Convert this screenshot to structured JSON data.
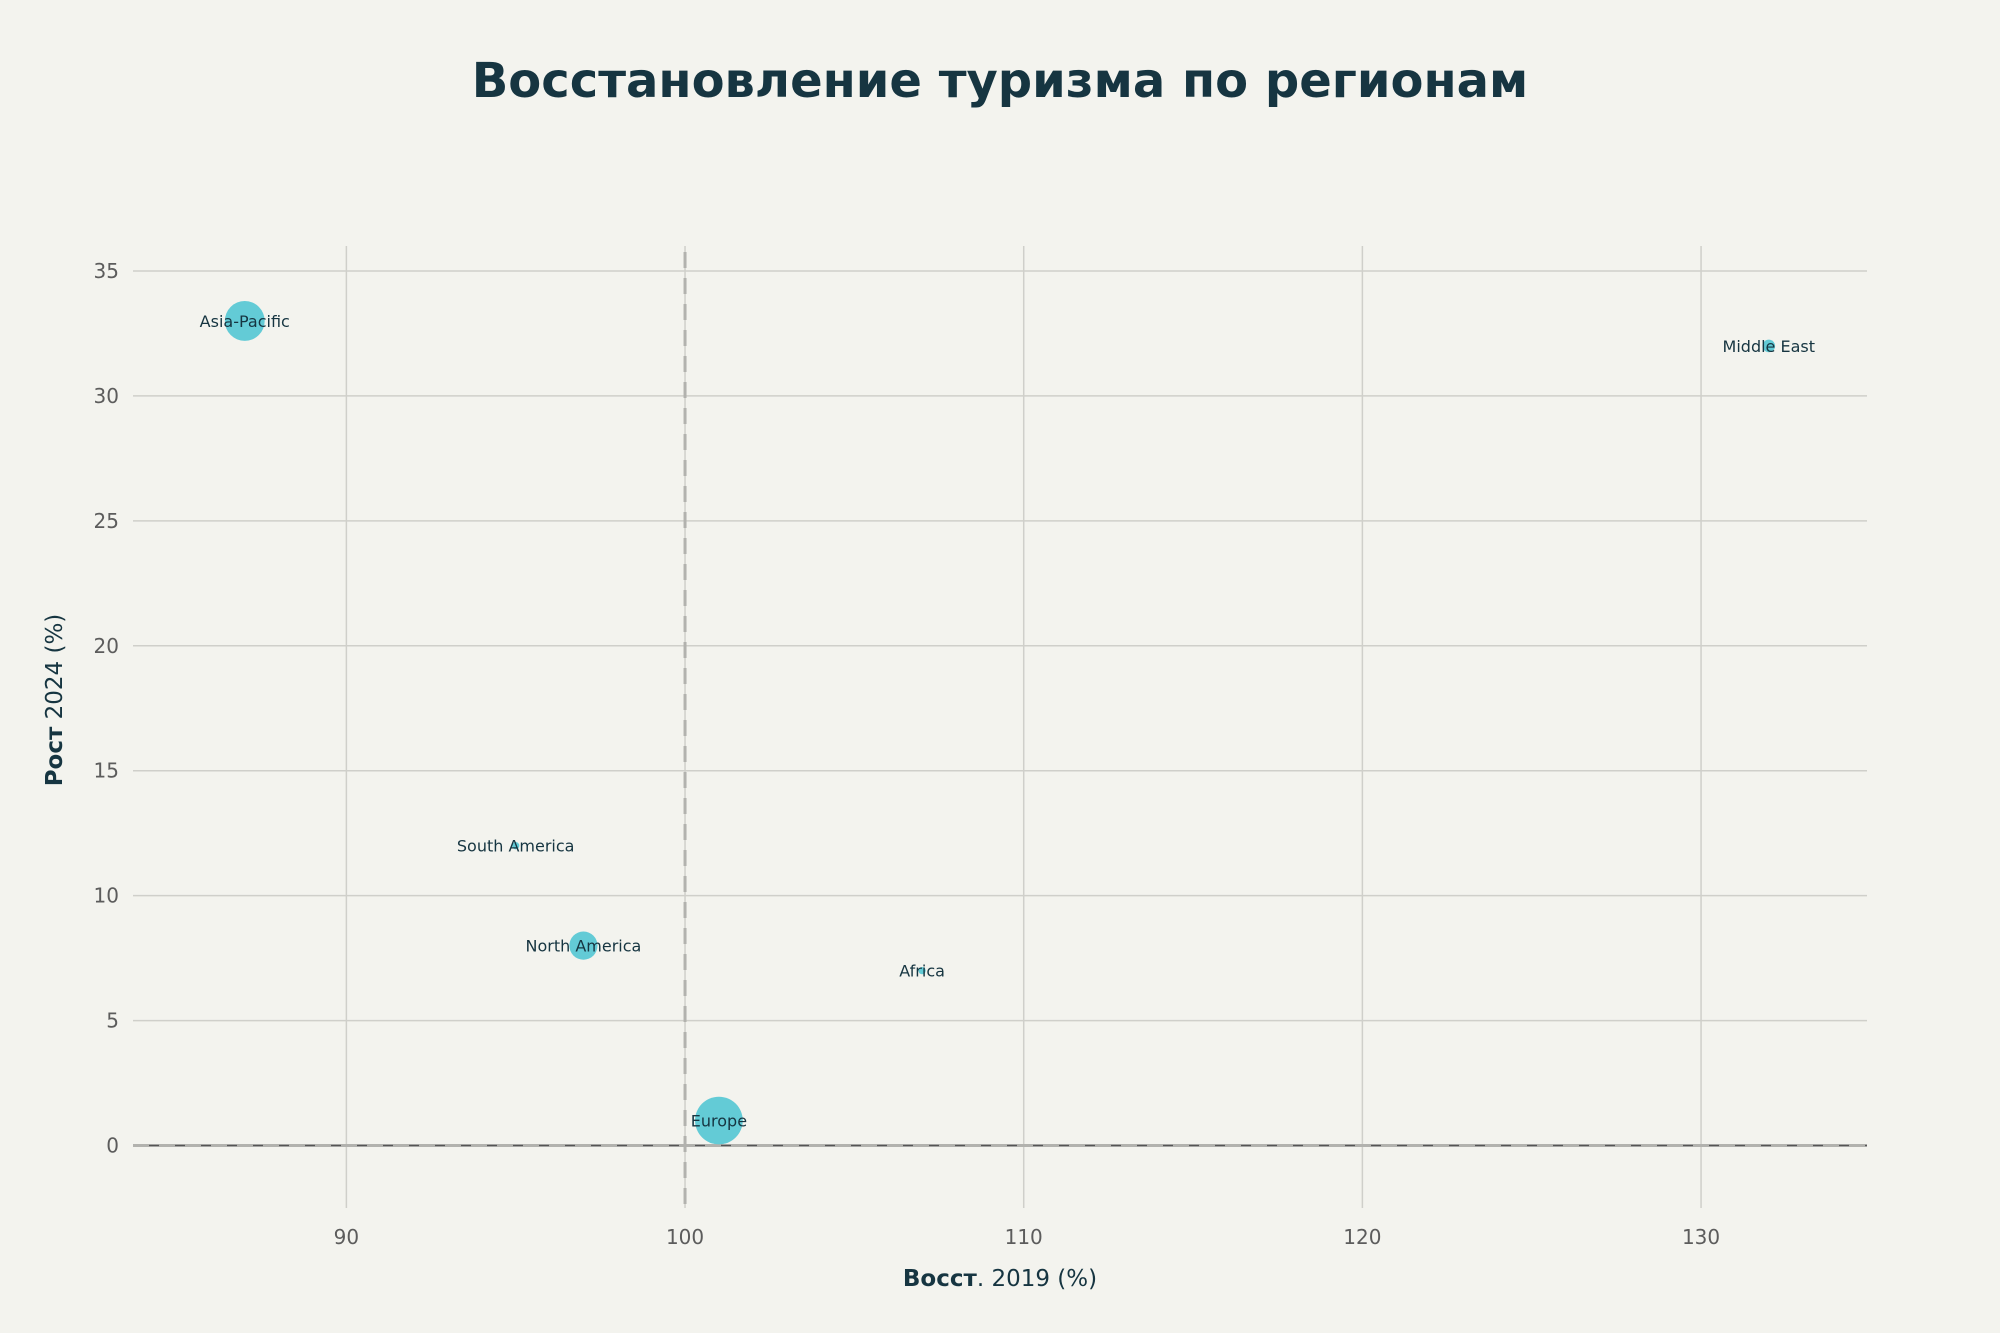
{
  "chart_data": {
    "type": "scatter",
    "title": "Восстановление туризма по регионам",
    "xlabel_bold": "Восст",
    "xlabel_rest": ". 2019 (%)",
    "ylabel_bold": "Рост",
    "ylabel_rest": " 2024 (%)",
    "xlim": [
      83.7,
      134.9
    ],
    "ylim": [
      -2.5,
      36
    ],
    "x_ticks": [
      90,
      100,
      110,
      120,
      130
    ],
    "y_ticks": [
      0,
      5,
      10,
      15,
      20,
      25,
      30,
      35
    ],
    "reference_lines": {
      "x": 100,
      "y": 0
    },
    "grid": true,
    "marker_color": "#5bc8d4",
    "points": [
      {
        "label": "Asia-Pacific",
        "x": 87,
        "y": 33,
        "size": 3
      },
      {
        "label": "Middle East",
        "x": 132,
        "y": 32,
        "size": 0.3
      },
      {
        "label": "South America",
        "x": 95,
        "y": 12,
        "size": 0.1
      },
      {
        "label": "North America",
        "x": 97,
        "y": 8,
        "size": 1.5
      },
      {
        "label": "Africa",
        "x": 107,
        "y": 7,
        "size": 0.1
      },
      {
        "label": "Europe",
        "x": 101,
        "y": 1,
        "size": 4.3
      }
    ]
  }
}
